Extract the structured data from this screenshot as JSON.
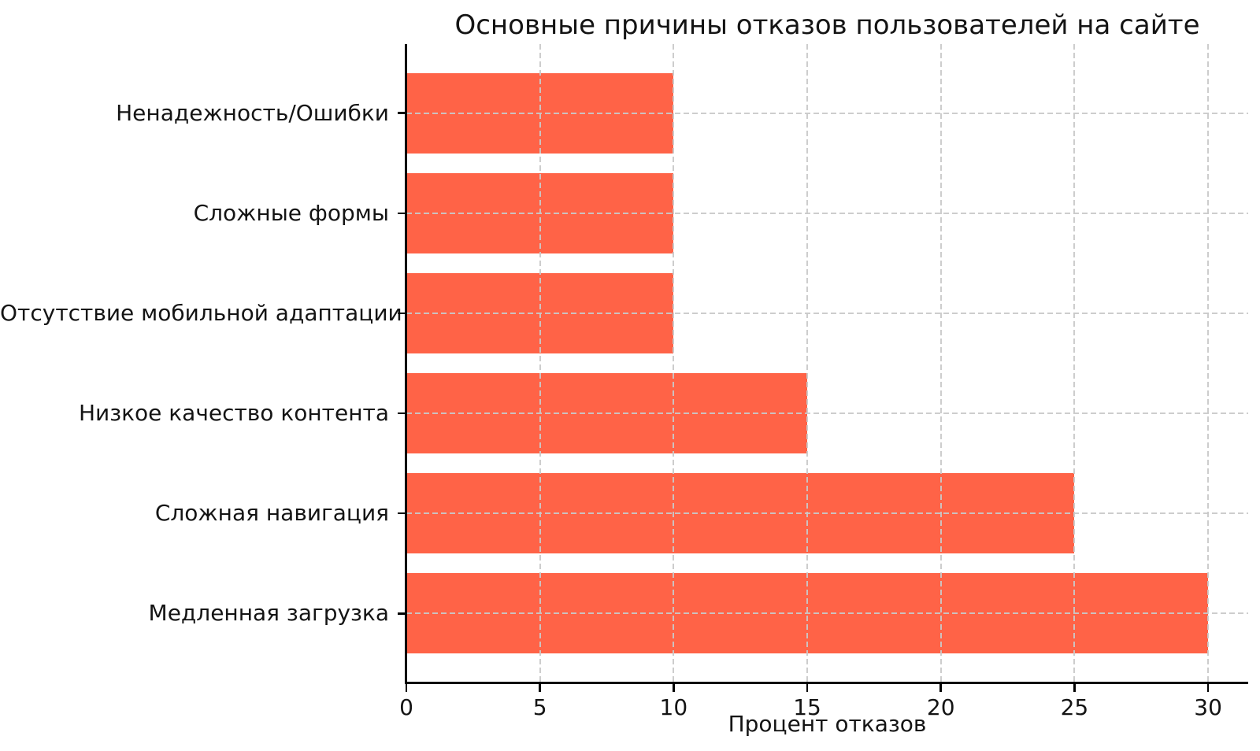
{
  "chart_data": {
    "type": "bar",
    "orientation": "horizontal",
    "title": "Основные причины отказов пользователей на сайте",
    "xlabel": "Процент отказов",
    "categories_order": "top-to-bottom",
    "categories": [
      "Ненадежность/Ошибки",
      "Сложные формы",
      "Отсутствие мобильной адаптации",
      "Низкое качество контента",
      "Сложная навигация",
      "Медленная загрузка"
    ],
    "values": [
      10,
      10,
      10,
      15,
      25,
      30
    ],
    "xticks": [
      0,
      5,
      10,
      15,
      20,
      25,
      30
    ],
    "xlim": [
      0,
      31.5
    ],
    "grid": "dashed gridlines on both axes, drawn over bars",
    "legend": "none",
    "bar_color": "#ff6347",
    "grid_color": "#c9c9c9",
    "axis_color": "#000000",
    "text_color": "#141414",
    "background_color": "#ffffff"
  }
}
